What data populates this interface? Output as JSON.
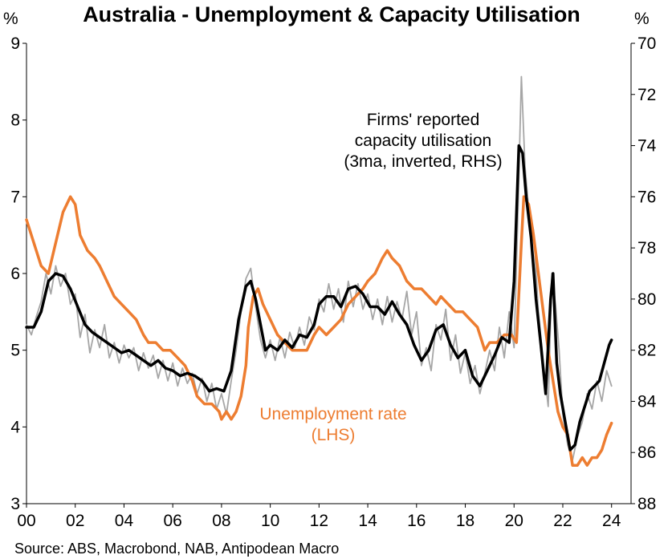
{
  "chart_data": {
    "type": "line",
    "title": "Australia - Unemployment & Capacity Utilisation",
    "left_axis": {
      "unit": "%",
      "ylim": [
        3,
        9
      ],
      "ticks": [
        3,
        4,
        5,
        6,
        7,
        8,
        9
      ]
    },
    "right_axis": {
      "unit": "%",
      "ylim": [
        88,
        70
      ],
      "inverted": true,
      "ticks": [
        88,
        86,
        84,
        82,
        80,
        78,
        76,
        74,
        72,
        70
      ]
    },
    "x_axis": {
      "xlim": [
        2000,
        2024.8
      ],
      "ticks": [
        2000,
        2002,
        2004,
        2006,
        2008,
        2010,
        2012,
        2014,
        2016,
        2018,
        2020,
        2022,
        2024
      ],
      "tick_labels": [
        "00",
        "02",
        "04",
        "06",
        "08",
        "10",
        "12",
        "14",
        "16",
        "18",
        "20",
        "22",
        "24"
      ]
    },
    "series": [
      {
        "name": "Unemployment rate (LHS)",
        "axis": "left",
        "color": "#ED7D31",
        "x": [
          2000.0,
          2000.3,
          2000.6,
          2000.9,
          2001.2,
          2001.5,
          2001.8,
          2002.0,
          2002.2,
          2002.5,
          2002.8,
          2003.0,
          2003.3,
          2003.6,
          2003.9,
          2004.2,
          2004.5,
          2004.8,
          2005.0,
          2005.3,
          2005.6,
          2005.9,
          2006.2,
          2006.5,
          2006.8,
          2007.0,
          2007.3,
          2007.6,
          2007.9,
          2008.0,
          2008.2,
          2008.4,
          2008.6,
          2008.8,
          2009.0,
          2009.1,
          2009.3,
          2009.5,
          2009.7,
          2010.0,
          2010.3,
          2010.6,
          2010.9,
          2011.2,
          2011.5,
          2011.8,
          2012.0,
          2012.3,
          2012.6,
          2012.9,
          2013.2,
          2013.5,
          2013.8,
          2014.0,
          2014.3,
          2014.6,
          2014.8,
          2015.0,
          2015.3,
          2015.6,
          2015.9,
          2016.2,
          2016.5,
          2016.8,
          2017.0,
          2017.3,
          2017.6,
          2017.9,
          2018.2,
          2018.5,
          2018.8,
          2019.0,
          2019.3,
          2019.6,
          2019.9,
          2020.1,
          2020.3,
          2020.4,
          2020.6,
          2020.8,
          2021.0,
          2021.2,
          2021.4,
          2021.6,
          2021.8,
          2022.0,
          2022.2,
          2022.4,
          2022.6,
          2022.8,
          2023.0,
          2023.2,
          2023.4,
          2023.6,
          2023.8,
          2024.0
        ],
        "values": [
          6.7,
          6.4,
          6.1,
          6.0,
          6.4,
          6.8,
          7.0,
          6.9,
          6.5,
          6.3,
          6.2,
          6.1,
          5.9,
          5.7,
          5.6,
          5.5,
          5.4,
          5.2,
          5.1,
          5.1,
          5.0,
          5.0,
          4.9,
          4.8,
          4.6,
          4.4,
          4.3,
          4.3,
          4.2,
          4.1,
          4.2,
          4.1,
          4.2,
          4.4,
          4.8,
          5.3,
          5.7,
          5.8,
          5.6,
          5.4,
          5.2,
          5.1,
          5.0,
          5.0,
          5.0,
          5.2,
          5.3,
          5.2,
          5.3,
          5.4,
          5.6,
          5.7,
          5.8,
          5.9,
          6.0,
          6.2,
          6.3,
          6.2,
          6.1,
          5.9,
          5.8,
          5.8,
          5.7,
          5.6,
          5.7,
          5.6,
          5.5,
          5.5,
          5.4,
          5.3,
          5.0,
          5.1,
          5.1,
          5.2,
          5.2,
          5.1,
          6.4,
          7.0,
          6.9,
          6.5,
          6.0,
          5.5,
          5.0,
          4.6,
          4.2,
          4.0,
          3.9,
          3.5,
          3.5,
          3.6,
          3.5,
          3.6,
          3.6,
          3.7,
          3.9,
          4.05
        ]
      },
      {
        "name": "Firms' reported capacity utilisation (3ma, inverted, RHS)",
        "axis": "right",
        "color": "#000000",
        "x": [
          2000.0,
          2000.3,
          2000.6,
          2000.9,
          2001.2,
          2001.5,
          2001.8,
          2002.1,
          2002.4,
          2002.7,
          2003.0,
          2003.3,
          2003.6,
          2003.9,
          2004.2,
          2004.5,
          2004.8,
          2005.1,
          2005.4,
          2005.7,
          2006.0,
          2006.3,
          2006.6,
          2006.9,
          2007.2,
          2007.5,
          2007.8,
          2008.1,
          2008.4,
          2008.7,
          2009.0,
          2009.2,
          2009.4,
          2009.6,
          2009.8,
          2010.0,
          2010.3,
          2010.6,
          2010.9,
          2011.2,
          2011.5,
          2011.8,
          2012.0,
          2012.3,
          2012.6,
          2012.9,
          2013.2,
          2013.5,
          2013.8,
          2014.1,
          2014.4,
          2014.7,
          2015.0,
          2015.3,
          2015.6,
          2015.9,
          2016.2,
          2016.5,
          2016.8,
          2017.1,
          2017.4,
          2017.7,
          2018.0,
          2018.3,
          2018.6,
          2018.9,
          2019.2,
          2019.5,
          2019.8,
          2020.0,
          2020.2,
          2020.35,
          2020.5,
          2020.7,
          2020.9,
          2021.1,
          2021.3,
          2021.5,
          2021.6,
          2021.75,
          2021.9,
          2022.1,
          2022.3,
          2022.5,
          2022.7,
          2022.9,
          2023.1,
          2023.3,
          2023.5,
          2023.7,
          2023.9,
          2024.0
        ],
        "values": [
          81.1,
          81.1,
          80.5,
          79.3,
          79.0,
          79.1,
          79.6,
          80.3,
          81.0,
          81.3,
          81.5,
          81.7,
          81.9,
          82.1,
          82.0,
          82.2,
          82.4,
          82.6,
          82.4,
          82.7,
          82.8,
          83.0,
          82.9,
          83.0,
          83.2,
          83.6,
          83.5,
          83.6,
          82.8,
          80.8,
          79.5,
          79.3,
          80.0,
          81.0,
          82.0,
          81.8,
          82.0,
          81.6,
          81.9,
          81.4,
          81.5,
          81.0,
          80.2,
          79.9,
          79.9,
          80.3,
          79.6,
          79.5,
          79.8,
          80.3,
          80.3,
          80.6,
          80.1,
          80.6,
          81.0,
          81.8,
          82.4,
          82.0,
          81.2,
          81.0,
          81.8,
          82.3,
          82.0,
          83.0,
          83.4,
          82.8,
          82.2,
          81.5,
          81.7,
          79.3,
          74.0,
          74.3,
          76.0,
          77.6,
          80.0,
          81.8,
          83.7,
          80.0,
          79.0,
          82.5,
          83.7,
          84.8,
          85.9,
          85.7,
          84.8,
          84.2,
          83.6,
          83.4,
          83.2,
          82.5,
          81.8,
          81.6
        ]
      },
      {
        "name": "Firms' reported capacity utilisation (monthly)",
        "axis": "right",
        "color": "#A6A6A6",
        "x": [
          2000.0,
          2000.2,
          2000.4,
          2000.6,
          2000.8,
          2001.0,
          2001.2,
          2001.4,
          2001.6,
          2001.8,
          2002.0,
          2002.2,
          2002.4,
          2002.6,
          2002.8,
          2003.0,
          2003.2,
          2003.4,
          2003.6,
          2003.8,
          2004.0,
          2004.2,
          2004.4,
          2004.6,
          2004.8,
          2005.0,
          2005.2,
          2005.4,
          2005.6,
          2005.8,
          2006.0,
          2006.2,
          2006.4,
          2006.6,
          2006.8,
          2007.0,
          2007.2,
          2007.4,
          2007.6,
          2007.8,
          2008.0,
          2008.2,
          2008.4,
          2008.6,
          2008.8,
          2009.0,
          2009.2,
          2009.4,
          2009.6,
          2009.8,
          2010.0,
          2010.2,
          2010.4,
          2010.6,
          2010.8,
          2011.0,
          2011.2,
          2011.4,
          2011.6,
          2011.8,
          2012.0,
          2012.2,
          2012.4,
          2012.6,
          2012.8,
          2013.0,
          2013.2,
          2013.4,
          2013.6,
          2013.8,
          2014.0,
          2014.2,
          2014.4,
          2014.6,
          2014.8,
          2015.0,
          2015.2,
          2015.4,
          2015.6,
          2015.8,
          2016.0,
          2016.2,
          2016.4,
          2016.6,
          2016.8,
          2017.0,
          2017.2,
          2017.4,
          2017.6,
          2017.8,
          2018.0,
          2018.2,
          2018.4,
          2018.6,
          2018.8,
          2019.0,
          2019.2,
          2019.4,
          2019.6,
          2019.8,
          2020.0,
          2020.15,
          2020.3,
          2020.45,
          2020.6,
          2020.8,
          2021.0,
          2021.2,
          2021.4,
          2021.55,
          2021.7,
          2021.85,
          2022.0,
          2022.2,
          2022.4,
          2022.6,
          2022.8,
          2023.0,
          2023.2,
          2023.4,
          2023.6,
          2023.8,
          2024.0
        ],
        "values": [
          81.0,
          81.4,
          80.7,
          80.1,
          79.0,
          79.8,
          78.7,
          79.5,
          79.0,
          80.2,
          79.8,
          81.5,
          80.6,
          82.1,
          81.2,
          81.9,
          81.0,
          82.3,
          81.7,
          82.5,
          81.8,
          82.3,
          81.9,
          82.8,
          82.1,
          82.7,
          82.2,
          83.1,
          82.4,
          83.2,
          82.5,
          83.4,
          82.7,
          83.3,
          82.9,
          83.7,
          83.1,
          84.0,
          83.3,
          84.3,
          83.7,
          84.5,
          83.2,
          82.0,
          80.5,
          79.2,
          78.8,
          80.3,
          81.6,
          82.3,
          81.6,
          82.4,
          81.5,
          82.3,
          81.3,
          81.9,
          81.1,
          81.8,
          80.7,
          81.2,
          80.0,
          80.5,
          79.4,
          80.4,
          79.6,
          80.9,
          79.3,
          80.3,
          79.4,
          80.4,
          79.8,
          80.8,
          80.0,
          81.0,
          79.9,
          80.9,
          80.1,
          80.8,
          79.7,
          81.4,
          80.5,
          82.6,
          81.9,
          82.8,
          81.0,
          81.6,
          80.4,
          82.4,
          81.4,
          82.9,
          82.1,
          83.3,
          82.6,
          83.7,
          82.9,
          82.0,
          82.8,
          81.1,
          82.3,
          80.5,
          81.9,
          77.0,
          71.3,
          74.8,
          76.5,
          77.3,
          80.5,
          82.5,
          84.2,
          79.0,
          80.2,
          82.0,
          84.5,
          85.7,
          86.3,
          85.4,
          84.8,
          83.7,
          84.3,
          83.2,
          84.0,
          82.8,
          83.4
        ]
      }
    ],
    "annotations": [
      {
        "lines": [
          "Firms' reported",
          "capacity utilisation",
          "(3ma, inverted, RHS)"
        ],
        "color": "#000000"
      },
      {
        "lines": [
          "Unemployment rate",
          "(LHS)"
        ],
        "color": "#ED7D31"
      }
    ],
    "source": "Source: ABS, Macrobond, NAB, Antipodean Macro",
    "grid": false
  }
}
